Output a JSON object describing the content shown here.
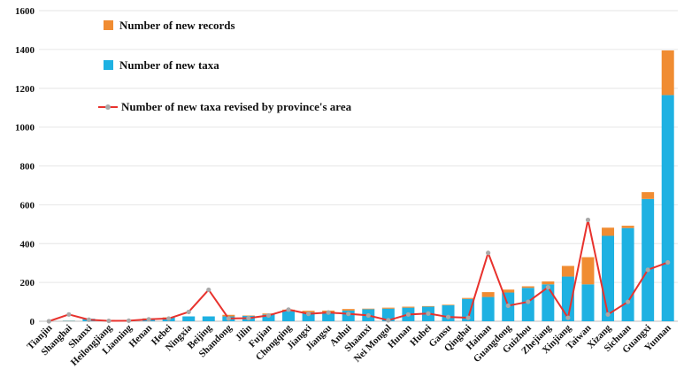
{
  "chart_data": {
    "type": "bar",
    "stacked": true,
    "title": "",
    "xlabel": "",
    "ylabel": "",
    "ylim": [
      0,
      1600
    ],
    "yticks": [
      0,
      200,
      400,
      600,
      800,
      1000,
      1200,
      1400,
      1600
    ],
    "grid": "horizontal",
    "legend_position": "top-left",
    "categories": [
      "Tianjin",
      "Shanghai",
      "Shanxi",
      "Heilongjiang",
      "Liaoning",
      "Henan",
      "Hebei",
      "Ningxia",
      "Beijing",
      "Shandong",
      "Jilin",
      "Fujian",
      "Chongqing",
      "Jiangxi",
      "Jiangsu",
      "Anhui",
      "Shaanxi",
      "Nei Mongol",
      "Hunan",
      "Hubei",
      "Gansu",
      "Qinghai",
      "Hainan",
      "Guangdong",
      "Guizhou",
      "Zhejiang",
      "Xinjiang",
      "Taiwan",
      "Xizang",
      "Sichuan",
      "Guangxi",
      "Yunnan"
    ],
    "series": [
      {
        "name": "Number of  new taxa",
        "kind": "bar",
        "color": "#1EB1E2",
        "values": [
          0,
          2,
          13,
          6,
          6,
          14,
          18,
          25,
          25,
          25,
          28,
          35,
          52,
          46,
          48,
          55,
          62,
          65,
          70,
          75,
          82,
          115,
          125,
          148,
          172,
          190,
          230,
          190,
          440,
          480,
          630,
          1165
        ]
      },
      {
        "name": "Number of  new records",
        "kind": "bar",
        "color": "#F08C32",
        "values": [
          0,
          1,
          0,
          1,
          1,
          1,
          2,
          0,
          0,
          8,
          2,
          5,
          8,
          8,
          7,
          8,
          3,
          5,
          5,
          3,
          3,
          5,
          25,
          15,
          8,
          15,
          55,
          140,
          42,
          12,
          35,
          230
        ]
      },
      {
        "name": "Number of  new taxa revised by province's area",
        "kind": "line",
        "color": "#E8322D",
        "marker_color": "#A9A9A9",
        "values": [
          0,
          35,
          8,
          2,
          3,
          10,
          14,
          48,
          162,
          14,
          16,
          30,
          60,
          38,
          45,
          38,
          30,
          5,
          35,
          40,
          22,
          18,
          352,
          80,
          100,
          175,
          18,
          522,
          35,
          100,
          265,
          303
        ]
      }
    ]
  }
}
